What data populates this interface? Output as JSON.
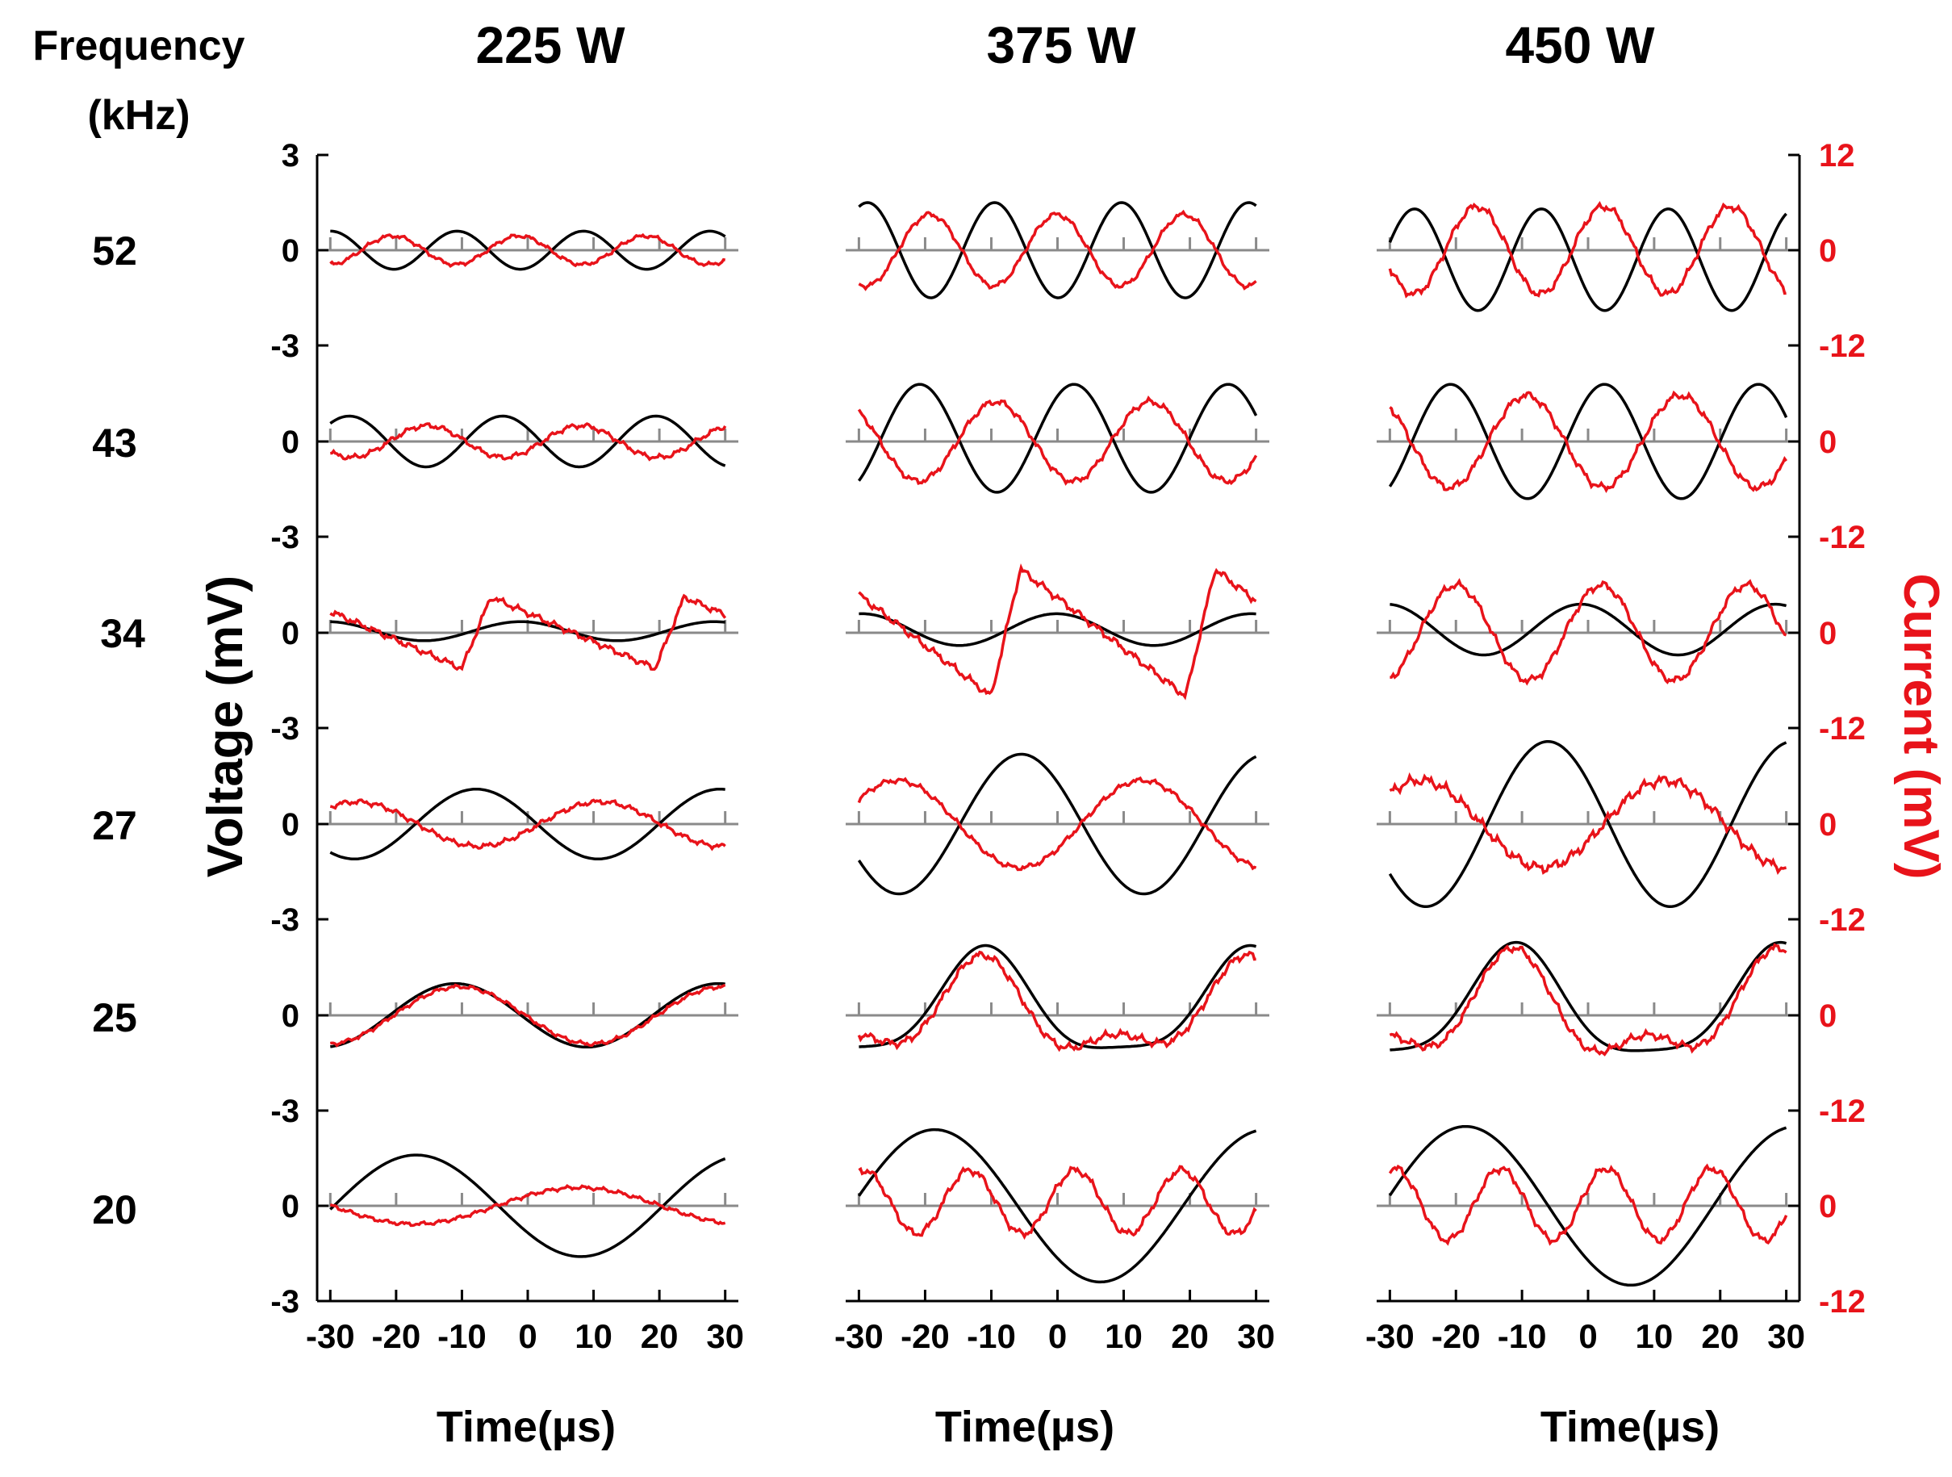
{
  "figure": {
    "frequency_header_line1": "Frequency",
    "frequency_header_line2": "(kHz)",
    "y_left_label": "Voltage (mV)",
    "y_right_label": "Current (mV)",
    "x_label": "Time(µs)",
    "left_ticks": [
      "3",
      "0",
      "-3"
    ],
    "right_ticks": [
      "12",
      "0",
      "-12"
    ],
    "x_ticks": [
      "-30",
      "-20",
      "-10",
      "0",
      "10",
      "20",
      "30"
    ],
    "colors": {
      "voltage": "#000000",
      "current": "#e8131a",
      "zero_line": "#8a8a8a",
      "axis": "#000000"
    }
  },
  "chart_data": {
    "type": "line",
    "layout": "grid",
    "columns": [
      "225 W",
      "375 W",
      "450 W"
    ],
    "rows": [
      "52",
      "43",
      "34",
      "27",
      "25",
      "20"
    ],
    "x_range": [
      -32,
      32
    ],
    "voltage_axis": {
      "unit": "mV",
      "ylim": [
        -3,
        3
      ]
    },
    "current_axis": {
      "unit": "mV",
      "ylim": [
        -12,
        12
      ]
    },
    "series_names": [
      "Voltage",
      "Current"
    ],
    "panels": [
      [
        {
          "frequency": 52,
          "power": "225 W",
          "voltage": {
            "amp": 0.6,
            "period": 19.2,
            "phase": -1.2,
            "offset": 0.0
          },
          "current": {
            "amp": 1.8,
            "period": 19.2,
            "phase": 2.0,
            "offset": 0.0,
            "noise": 0.3
          }
        },
        {
          "frequency": 52,
          "power": "375 W",
          "voltage": {
            "amp": 1.5,
            "period": 19.2,
            "phase": -1.6,
            "offset": 0.0
          },
          "current": {
            "amp": 4.5,
            "period": 19.2,
            "phase": 1.6,
            "offset": 0.0,
            "noise": 0.4
          }
        },
        {
          "frequency": 52,
          "power": "450 W",
          "voltage": {
            "amp": 1.6,
            "period": 19.2,
            "phase": -2.4,
            "offset": -0.3
          },
          "current": {
            "amp": 5.5,
            "period": 19.2,
            "phase": 0.8,
            "offset": 0.0,
            "noise": 0.6
          }
        }
      ],
      [
        {
          "frequency": 43,
          "power": "225 W",
          "voltage": {
            "amp": 0.8,
            "period": 23.3,
            "phase": 2.6,
            "offset": 0.0
          },
          "current": {
            "amp": 2.0,
            "period": 23.3,
            "phase": -0.6,
            "offset": 0.0,
            "noise": 0.4
          }
        },
        {
          "frequency": 43,
          "power": "375 W",
          "voltage": {
            "amp": 1.7,
            "period": 23.3,
            "phase": 0.9,
            "offset": 0.1
          },
          "current": {
            "amp": 5.0,
            "period": 23.3,
            "phase": -2.2,
            "offset": 0.0,
            "noise": 0.5
          }
        },
        {
          "frequency": 43,
          "power": "450 W",
          "voltage": {
            "amp": 1.8,
            "period": 23.3,
            "phase": 0.9,
            "offset": 0.0
          },
          "current": {
            "amp": 5.8,
            "period": 23.3,
            "phase": -2.2,
            "offset": 0.0,
            "noise": 0.6
          }
        }
      ],
      [
        {
          "frequency": 34,
          "power": "225 W",
          "voltage": {
            "amp": 0.3,
            "period": 29.4,
            "phase": 1.8,
            "offset": 0.05
          },
          "current": {
            "amp": 4.5,
            "period": 29.4,
            "phase": 1.2,
            "offset": 0.0,
            "noise": 0.5,
            "shape": "saw"
          }
        },
        {
          "frequency": 34,
          "power": "375 W",
          "voltage": {
            "amp": 0.5,
            "period": 29.4,
            "phase": 1.6,
            "offset": 0.1
          },
          "current": {
            "amp": 8.0,
            "period": 29.4,
            "phase": 1.2,
            "offset": 0.0,
            "noise": 0.6,
            "shape": "saw"
          }
        },
        {
          "frequency": 34,
          "power": "450 W",
          "voltage": {
            "amp": 0.8,
            "period": 29.4,
            "phase": 1.8,
            "offset": 0.1
          },
          "current": {
            "amp": 6.0,
            "period": 22.0,
            "phase": 1.0,
            "offset": 0.0,
            "noise": 0.6
          }
        }
      ],
      [
        {
          "frequency": 27,
          "power": "225 W",
          "voltage": {
            "amp": 1.1,
            "period": 37.0,
            "phase": 2.9,
            "offset": 0.0
          },
          "current": {
            "amp": 2.8,
            "period": 37.0,
            "phase": -0.3,
            "offset": 0.0,
            "noise": 0.4
          }
        },
        {
          "frequency": 27,
          "power": "375 W",
          "voltage": {
            "amp": 2.2,
            "period": 37.0,
            "phase": 2.5,
            "offset": 0.0
          },
          "current": {
            "amp": 5.5,
            "period": 37.0,
            "phase": -0.6,
            "offset": 0.0,
            "noise": 0.4
          }
        },
        {
          "frequency": 27,
          "power": "450 W",
          "voltage": {
            "amp": 2.6,
            "period": 37.0,
            "phase": 2.6,
            "offset": 0.0
          },
          "current": {
            "amp": 5.5,
            "period": 37.0,
            "phase": -0.4,
            "offset": 0.0,
            "noise": 0.8
          }
        }
      ],
      [
        {
          "frequency": 25,
          "power": "225 W",
          "voltage": {
            "amp": 1.0,
            "period": 40.0,
            "phase": 3.3,
            "offset": 0.0
          },
          "current": {
            "amp": 3.6,
            "period": 40.0,
            "phase": 3.2,
            "offset": 0.0,
            "noise": 0.3
          }
        },
        {
          "frequency": 25,
          "power": "375 W",
          "voltage": {
            "amp": 1.6,
            "period": 40.0,
            "phase": 3.3,
            "offset": 0.2,
            "h2": 0.4
          },
          "current": {
            "amp": 5.0,
            "period": 40.0,
            "phase": 3.4,
            "offset": 0.0,
            "noise": 0.6,
            "h2": 2.6
          }
        },
        {
          "frequency": 25,
          "power": "450 W",
          "voltage": {
            "amp": 1.7,
            "period": 40.0,
            "phase": 3.3,
            "offset": 0.2,
            "h2": 0.4
          },
          "current": {
            "amp": 5.5,
            "period": 40.0,
            "phase": 3.4,
            "offset": 0.0,
            "noise": 0.6,
            "h2": 3.0
          }
        }
      ],
      [
        {
          "frequency": 20,
          "power": "225 W",
          "voltage": {
            "amp": 1.6,
            "period": 50.0,
            "phase": 3.7,
            "offset": 0.0
          },
          "current": {
            "amp": 2.3,
            "period": 50.0,
            "phase": 0.6,
            "offset": 0.0,
            "noise": 0.3
          }
        },
        {
          "frequency": 20,
          "power": "375 W",
          "voltage": {
            "amp": 2.4,
            "period": 50.0,
            "phase": 3.9,
            "offset": 0.0
          },
          "current": {
            "amp": 4.0,
            "period": 16.0,
            "phase": 0.5,
            "offset": 0.5,
            "noise": 0.6
          }
        },
        {
          "frequency": 20,
          "power": "450 W",
          "voltage": {
            "amp": 2.5,
            "period": 50.0,
            "phase": 3.9,
            "offset": 0.0
          },
          "current": {
            "amp": 4.5,
            "period": 16.0,
            "phase": 0.5,
            "offset": 0.2,
            "noise": 0.6
          }
        }
      ]
    ]
  }
}
